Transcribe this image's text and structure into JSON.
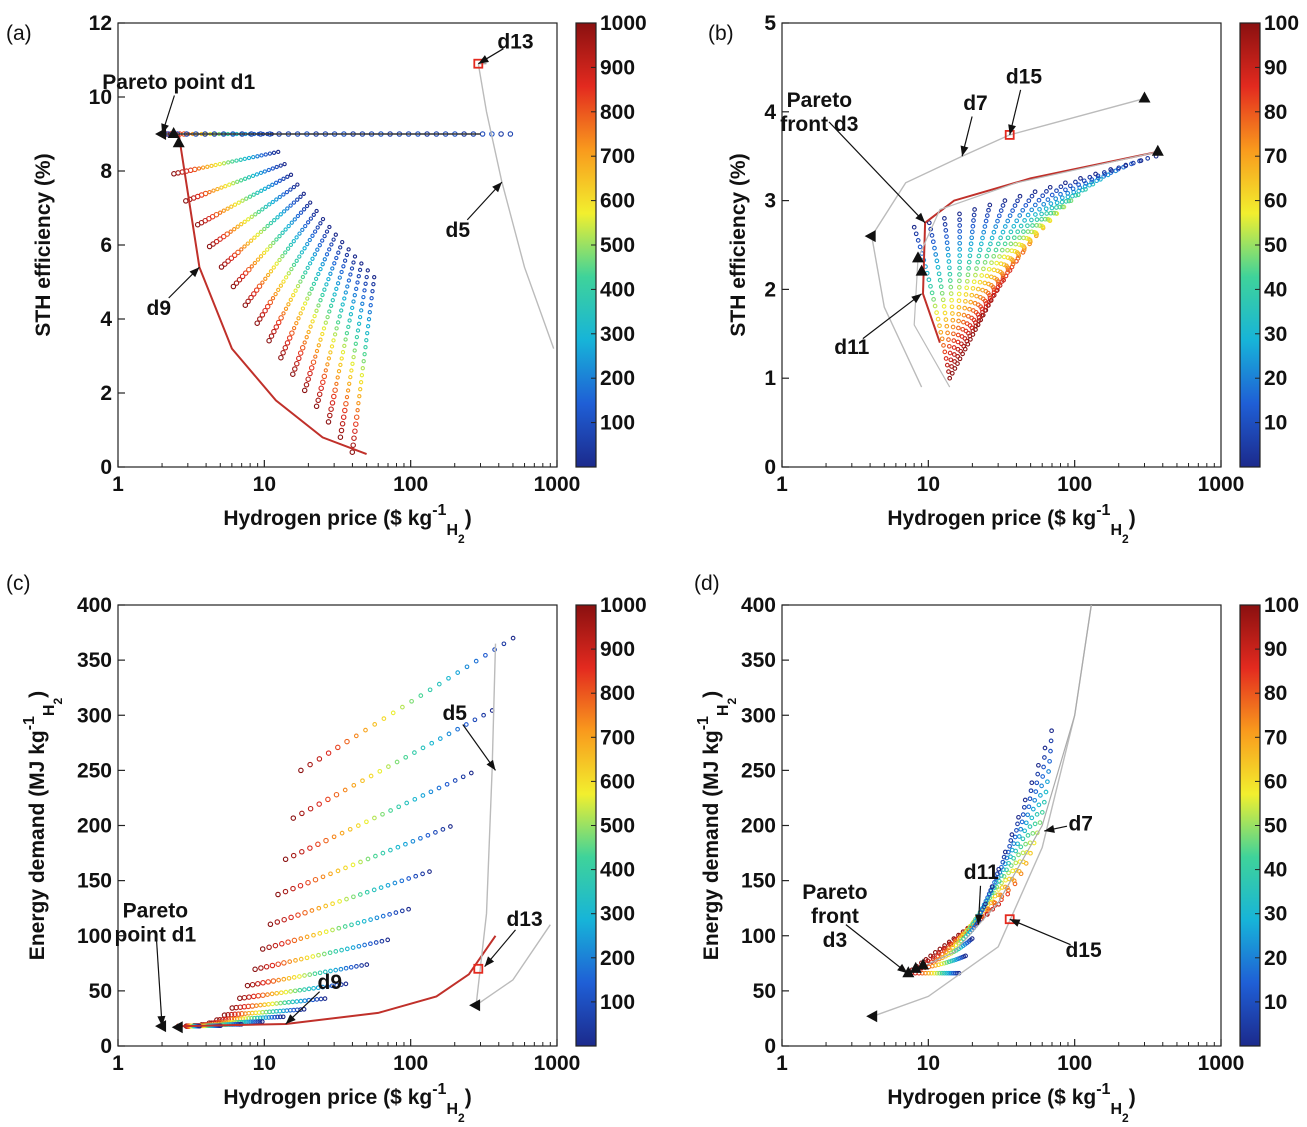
{
  "colormap": [
    "#1c2a8c",
    "#1f5fd6",
    "#17b4d8",
    "#3fd39a",
    "#f2ef2e",
    "#f99a1d",
    "#e32a1f",
    "#8a1010"
  ],
  "chart_data": [
    {
      "id": "a",
      "panel_label": "(a)",
      "type": "scatter",
      "xscale": "log",
      "xlim": [
        1,
        1000
      ],
      "ylim": [
        0,
        12
      ],
      "x_ticks": [
        "1",
        "10",
        "100",
        "1000"
      ],
      "y_ticks": [
        "0",
        "2",
        "4",
        "6",
        "8",
        "10",
        "12"
      ],
      "xlabel_main": "Hydrogen price ($ kg",
      "xlabel_sup": "-1",
      "xlabel_sub1": "H",
      "xlabel_sub2": "2",
      "xlabel_close": ")",
      "ylabel_main": "STH efficiency (%)",
      "colorbar": {
        "min": 0,
        "max": 1000,
        "ticks": [
          "100",
          "200",
          "300",
          "400",
          "500",
          "600",
          "700",
          "800",
          "900",
          "1000"
        ]
      },
      "annotations": [
        {
          "text": "Pareto point d1",
          "x": 2.0,
          "y": 9.0,
          "tx": 2.6,
          "ty": 10.4
        },
        {
          "text": "d13",
          "x": 290,
          "y": 10.9,
          "tx": 520,
          "ty": 11.5
        },
        {
          "text": "d5",
          "x": 420,
          "y": 7.7,
          "tx": 210,
          "ty": 6.4
        },
        {
          "text": "d9",
          "x": 3.6,
          "y": 5.4,
          "tx": 1.9,
          "ty": 4.3
        }
      ],
      "markers": [
        {
          "x": 2.0,
          "y": 9.0,
          "shape": "triangle-left"
        },
        {
          "x": 2.4,
          "y": 9.0,
          "shape": "triangle-up"
        },
        {
          "x": 2.6,
          "y": 8.75,
          "shape": "triangle-up"
        },
        {
          "x": 290,
          "y": 10.9,
          "shape": "square"
        }
      ]
    },
    {
      "id": "b",
      "panel_label": "(b)",
      "type": "scatter",
      "xscale": "log",
      "xlim": [
        1,
        1000
      ],
      "ylim": [
        0,
        5
      ],
      "x_ticks": [
        "1",
        "10",
        "100",
        "1000"
      ],
      "y_ticks": [
        "0",
        "1",
        "2",
        "3",
        "4",
        "5"
      ],
      "xlabel_main": "Hydrogen price ($ kg",
      "xlabel_sup": "-1",
      "xlabel_sub1": "H",
      "xlabel_sub2": "2",
      "xlabel_close": ")",
      "ylabel_main": "STH efficiency (%)",
      "colorbar": {
        "min": 0,
        "max": 100,
        "ticks": [
          "10",
          "20",
          "30",
          "40",
          "50",
          "60",
          "70",
          "80",
          "90",
          "100"
        ]
      },
      "annotations": [
        {
          "text_lines": [
            "Pareto",
            "front d3"
          ],
          "x": 9.5,
          "y": 2.75,
          "tx": 1.8,
          "ty": 4.0
        },
        {
          "text": "d7",
          "x": 17,
          "y": 3.5,
          "tx": 21,
          "ty": 4.1
        },
        {
          "text": "d15",
          "x": 36,
          "y": 3.74,
          "tx": 45,
          "ty": 4.4
        },
        {
          "text": "d11",
          "x": 9.0,
          "y": 1.95,
          "tx": 3.0,
          "ty": 1.35
        }
      ],
      "markers": [
        {
          "x": 4.1,
          "y": 2.6,
          "shape": "triangle-left"
        },
        {
          "x": 300,
          "y": 4.15,
          "shape": "triangle-up"
        },
        {
          "x": 370,
          "y": 3.55,
          "shape": "triangle-up"
        },
        {
          "x": 8.5,
          "y": 2.35,
          "shape": "triangle-up"
        },
        {
          "x": 9.0,
          "y": 2.2,
          "shape": "triangle-up"
        },
        {
          "x": 36,
          "y": 3.74,
          "shape": "square"
        }
      ]
    },
    {
      "id": "c",
      "panel_label": "(c)",
      "type": "scatter",
      "xscale": "log",
      "xlim": [
        1,
        1000
      ],
      "ylim": [
        0,
        400
      ],
      "x_ticks": [
        "1",
        "10",
        "100",
        "1000"
      ],
      "y_ticks": [
        "0",
        "50",
        "100",
        "150",
        "200",
        "250",
        "300",
        "350",
        "400"
      ],
      "xlabel_main": "Hydrogen price ($ kg",
      "xlabel_sup": "-1",
      "xlabel_sub1": "H",
      "xlabel_sub2": "2",
      "xlabel_close": ")",
      "ylabel_main": "Energy demand (MJ kg",
      "ylabel_sup": "-1",
      "ylabel_sub1": "H",
      "ylabel_sub2": "2",
      "ylabel_close": ")",
      "colorbar": {
        "min": 0,
        "max": 1000,
        "ticks": [
          "100",
          "200",
          "300",
          "400",
          "500",
          "600",
          "700",
          "800",
          "900",
          "1000"
        ]
      },
      "annotations": [
        {
          "text_lines": [
            "Pareto",
            "point d1"
          ],
          "x": 2.0,
          "y": 18,
          "tx": 1.8,
          "ty": 112
        },
        {
          "text": "d9",
          "x": 14,
          "y": 20,
          "tx": 28,
          "ty": 58
        },
        {
          "text": "d5",
          "x": 380,
          "y": 250,
          "tx": 200,
          "ty": 302
        },
        {
          "text": "d13",
          "x": 320,
          "y": 72,
          "tx": 600,
          "ty": 115
        }
      ],
      "markers": [
        {
          "x": 2.0,
          "y": 18,
          "shape": "triangle-left"
        },
        {
          "x": 2.6,
          "y": 17,
          "shape": "triangle-left"
        },
        {
          "x": 280,
          "y": 37,
          "shape": "triangle-left"
        },
        {
          "x": 290,
          "y": 70,
          "shape": "square"
        }
      ]
    },
    {
      "id": "d",
      "panel_label": "(d)",
      "type": "scatter",
      "xscale": "log",
      "xlim": [
        1,
        1000
      ],
      "ylim": [
        0,
        400
      ],
      "x_ticks": [
        "1",
        "10",
        "100",
        "1000"
      ],
      "y_ticks": [
        "0",
        "50",
        "100",
        "150",
        "200",
        "250",
        "300",
        "350",
        "400"
      ],
      "xlabel_main": "Hydrogen price ($ kg",
      "xlabel_sup": "-1",
      "xlabel_sub1": "H",
      "xlabel_sub2": "2",
      "xlabel_close": ")",
      "ylabel_main": "Energy demand (MJ kg",
      "ylabel_sup": "-1",
      "ylabel_sub1": "H",
      "ylabel_sub2": "2",
      "ylabel_close": ")",
      "colorbar": {
        "min": 0,
        "max": 100,
        "ticks": [
          "10",
          "20",
          "30",
          "40",
          "50",
          "60",
          "70",
          "80",
          "90",
          "100"
        ]
      },
      "annotations": [
        {
          "text_lines": [
            "Pareto",
            "front",
            "d3"
          ],
          "x": 7.2,
          "y": 66,
          "tx": 2.3,
          "ty": 118
        },
        {
          "text": "d11",
          "x": 22,
          "y": 110,
          "tx": 23,
          "ty": 158
        },
        {
          "text": "d7",
          "x": 62,
          "y": 195,
          "tx": 110,
          "ty": 202
        },
        {
          "text": "d15",
          "x": 36,
          "y": 115,
          "tx": 115,
          "ty": 87
        }
      ],
      "markers": [
        {
          "x": 4.2,
          "y": 27,
          "shape": "triangle-left"
        },
        {
          "x": 7.3,
          "y": 66,
          "shape": "triangle-up"
        },
        {
          "x": 8.2,
          "y": 70,
          "shape": "triangle-up"
        },
        {
          "x": 9.2,
          "y": 73,
          "shape": "triangle-up"
        },
        {
          "x": 36,
          "y": 115,
          "shape": "square"
        }
      ]
    }
  ]
}
